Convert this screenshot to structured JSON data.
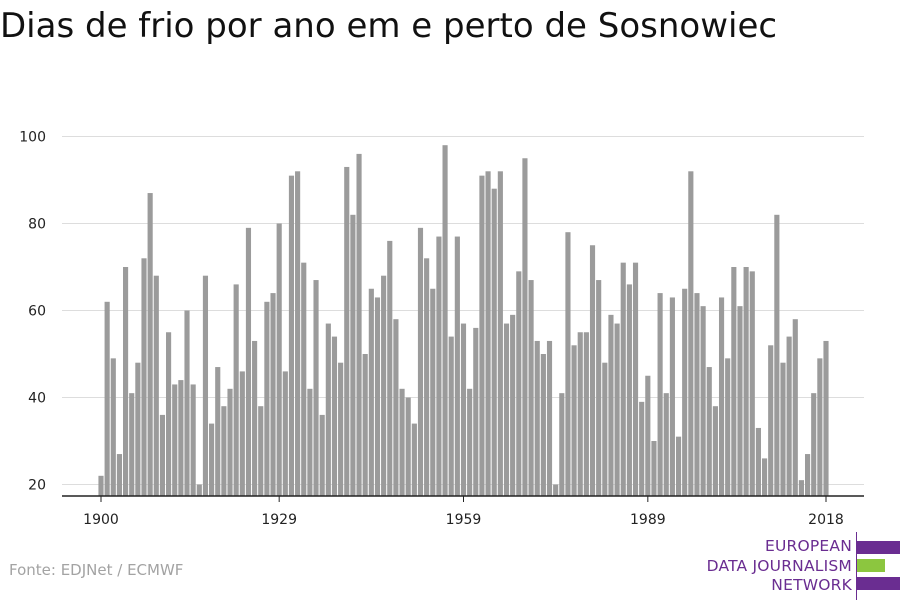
{
  "title": "Dias de frio por ano em e perto de Sosnowiec",
  "source": "Fonte: EDJNet / ECMWF",
  "logo": {
    "lines": [
      "EUROPEAN",
      "DATA JOURNALISM",
      "NETWORK"
    ],
    "color": "#6a2d91",
    "accent": "#8cc63f"
  },
  "colors": {
    "bar": "#9b9b9b",
    "grid": "#dddddd",
    "axis": "#222222"
  },
  "chart_data": {
    "type": "bar",
    "title": "Dias de frio por ano em e perto de Sosnowiec",
    "xlabel": "",
    "ylabel": "",
    "ylim": [
      18,
      100
    ],
    "xlim": [
      1900,
      2018
    ],
    "yticks": [
      20,
      40,
      60,
      80,
      100
    ],
    "xticks": [
      1900,
      1929,
      1959,
      1989,
      2018
    ],
    "grid": true,
    "legend": "none",
    "x": [
      1900,
      1901,
      1902,
      1903,
      1904,
      1905,
      1906,
      1907,
      1908,
      1909,
      1910,
      1911,
      1912,
      1913,
      1914,
      1915,
      1916,
      1917,
      1918,
      1919,
      1920,
      1921,
      1922,
      1923,
      1924,
      1925,
      1926,
      1927,
      1928,
      1929,
      1930,
      1931,
      1932,
      1933,
      1934,
      1935,
      1936,
      1937,
      1938,
      1939,
      1940,
      1941,
      1942,
      1943,
      1944,
      1945,
      1946,
      1947,
      1948,
      1949,
      1950,
      1951,
      1952,
      1953,
      1954,
      1955,
      1956,
      1957,
      1958,
      1959,
      1960,
      1961,
      1962,
      1963,
      1964,
      1965,
      1966,
      1967,
      1968,
      1969,
      1970,
      1971,
      1972,
      1973,
      1974,
      1975,
      1976,
      1977,
      1978,
      1979,
      1980,
      1981,
      1982,
      1983,
      1984,
      1985,
      1986,
      1987,
      1988,
      1989,
      1990,
      1991,
      1992,
      1993,
      1994,
      1995,
      1996,
      1997,
      1998,
      1999,
      2000,
      2001,
      2002,
      2003,
      2004,
      2005,
      2006,
      2007,
      2008,
      2009,
      2010,
      2011,
      2012,
      2013,
      2014,
      2015,
      2016,
      2017,
      2018
    ],
    "values": [
      22,
      62,
      49,
      27,
      70,
      41,
      48,
      72,
      87,
      68,
      36,
      55,
      43,
      44,
      60,
      43,
      20,
      68,
      34,
      47,
      38,
      42,
      66,
      46,
      79,
      53,
      38,
      62,
      64,
      80,
      46,
      91,
      92,
      71,
      42,
      67,
      36,
      57,
      54,
      48,
      93,
      82,
      96,
      50,
      65,
      63,
      68,
      76,
      58,
      42,
      40,
      34,
      79,
      72,
      65,
      77,
      98,
      54,
      77,
      57,
      42,
      56,
      91,
      92,
      88,
      92,
      57,
      59,
      69,
      95,
      67,
      53,
      50,
      53,
      20,
      41,
      78,
      52,
      55,
      55,
      75,
      67,
      48,
      59,
      57,
      71,
      66,
      71,
      39,
      45,
      30,
      64,
      41,
      63,
      31,
      65,
      92,
      64,
      61,
      47,
      38,
      63,
      49,
      70,
      61,
      70,
      69,
      33,
      26,
      52,
      82,
      48,
      54,
      58,
      21,
      27,
      41,
      49,
      53
    ]
  }
}
